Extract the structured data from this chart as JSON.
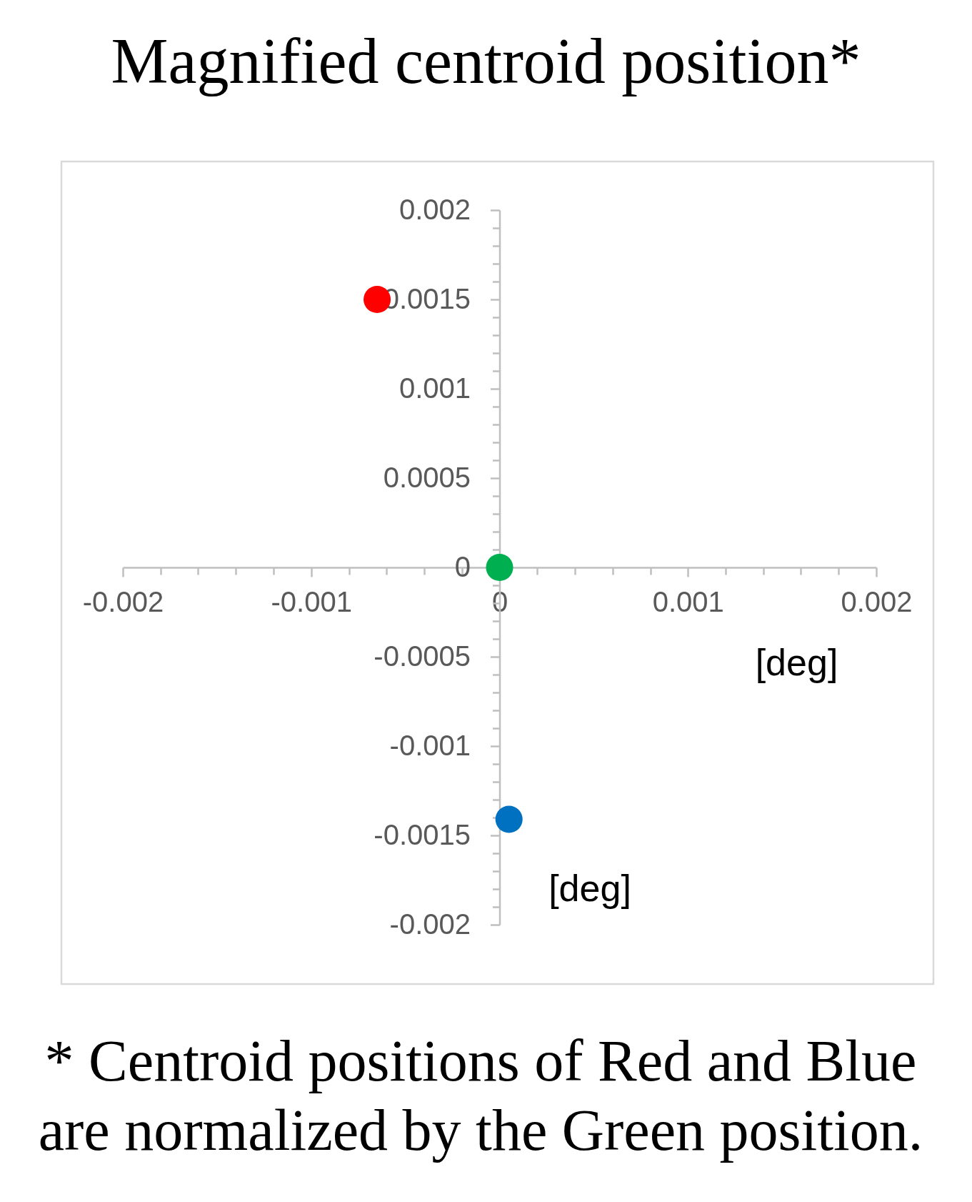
{
  "chart_data": {
    "type": "scatter",
    "title": "Magnified centroid position*",
    "xlabel": "[deg]",
    "ylabel": "[deg]",
    "annotations": [
      "* Centroid positions of Red and Blue are normalized by the Green position."
    ],
    "series": [
      {
        "color": "#ff0000",
        "x": [
          -0.00065
        ],
        "values": [
          0.0015
        ]
      },
      {
        "color": "#00b050",
        "x": [
          0
        ],
        "values": [
          0
        ]
      },
      {
        "color": "#0070c0",
        "x": [
          5e-05
        ],
        "values": [
          -0.00141
        ]
      }
    ],
    "xlim": [
      -0.002,
      0.002
    ],
    "ylim": [
      -0.002,
      0.002
    ],
    "xticks": [
      -0.002,
      {
        "value": -0.0018,
        "label": null
      },
      {
        "value": -0.0016,
        "label": null
      },
      {
        "value": -0.0014,
        "label": null
      },
      {
        "value": -0.0012,
        "label": null
      },
      -0.001,
      {
        "value": -0.0008,
        "label": null
      },
      {
        "value": -0.0006,
        "label": null
      },
      {
        "value": -0.0004,
        "label": null
      },
      {
        "value": -0.0002,
        "label": null
      },
      0,
      {
        "value": 0.0002,
        "label": null
      },
      {
        "value": 0.0004,
        "label": null
      },
      {
        "value": 0.0006,
        "label": null
      },
      {
        "value": 0.0008,
        "label": null
      },
      0.001,
      {
        "value": 0.0012,
        "label": null
      },
      {
        "value": 0.0014,
        "label": null
      },
      {
        "value": 0.0016,
        "label": null
      },
      {
        "value": 0.0018,
        "label": null
      },
      0.002
    ],
    "yticks": [
      -0.002,
      {
        "value": -0.0019,
        "label": null
      },
      {
        "value": -0.0018,
        "label": null
      },
      {
        "value": -0.0017,
        "label": null
      },
      {
        "value": -0.0016,
        "label": null
      },
      -0.0015,
      {
        "value": -0.0014,
        "label": null
      },
      {
        "value": -0.0013,
        "label": null
      },
      {
        "value": -0.0012,
        "label": null
      },
      {
        "value": -0.0011,
        "label": null
      },
      -0.001,
      {
        "value": -0.0009,
        "label": null
      },
      {
        "value": -0.0008,
        "label": null
      },
      {
        "value": -0.0007,
        "label": null
      },
      {
        "value": -0.0006,
        "label": null
      },
      -0.0005,
      {
        "value": -0.0004,
        "label": null
      },
      {
        "value": -0.0003,
        "label": null
      },
      {
        "value": -0.0002,
        "label": null
      },
      {
        "value": -0.0001,
        "label": null
      },
      0,
      {
        "value": 0.0001,
        "label": null
      },
      {
        "value": 0.0002,
        "label": null
      },
      {
        "value": 0.0003,
        "label": null
      },
      {
        "value": 0.0004,
        "label": null
      },
      0.0005,
      {
        "value": 0.0006,
        "label": null
      },
      {
        "value": 0.0007,
        "label": null
      },
      {
        "value": 0.0008,
        "label": null
      },
      {
        "value": 0.0009,
        "label": null
      },
      0.001,
      {
        "value": 0.0011,
        "label": null
      },
      {
        "value": 0.0012,
        "label": null
      },
      {
        "value": 0.0013,
        "label": null
      },
      {
        "value": 0.0014,
        "label": null
      },
      0.0015,
      {
        "value": 0.0016,
        "label": null
      },
      {
        "value": 0.0017,
        "label": null
      },
      {
        "value": 0.0018,
        "label": null
      },
      {
        "value": 0.0019,
        "label": null
      },
      0.002
    ],
    "grid": false,
    "marker": "circle"
  }
}
